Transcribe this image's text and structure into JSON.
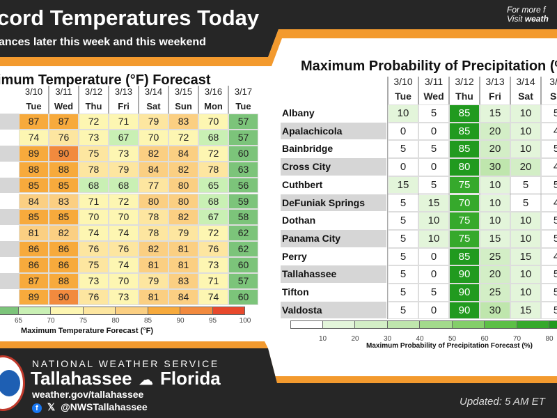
{
  "header": {
    "title": "cord Temperatures Today",
    "subtitle": "ances later this week and this weekend",
    "more_line1": "For more f",
    "more_line2_prefix": "Visit ",
    "more_line2_bold": "weath"
  },
  "temp_table": {
    "title": "imum Temperature (°F) Forecast",
    "dates": [
      "3/10",
      "3/11",
      "3/12",
      "3/13",
      "3/14",
      "3/15",
      "3/16",
      "3/17"
    ],
    "days": [
      "Tue",
      "Wed",
      "Thu",
      "Fri",
      "Sat",
      "Sun",
      "Mon",
      "Tue"
    ],
    "rows": [
      [
        87,
        87,
        72,
        71,
        79,
        83,
        70,
        57
      ],
      [
        74,
        76,
        73,
        67,
        70,
        72,
        68,
        57
      ],
      [
        89,
        90,
        75,
        73,
        82,
        84,
        72,
        60
      ],
      [
        88,
        88,
        78,
        79,
        84,
        82,
        78,
        63
      ],
      [
        85,
        85,
        68,
        68,
        77,
        80,
        65,
        56
      ],
      [
        84,
        83,
        71,
        72,
        80,
        80,
        68,
        59
      ],
      [
        85,
        85,
        70,
        70,
        78,
        82,
        67,
        58
      ],
      [
        81,
        82,
        74,
        74,
        78,
        79,
        72,
        62
      ],
      [
        86,
        86,
        76,
        76,
        82,
        81,
        76,
        62
      ],
      [
        86,
        86,
        75,
        74,
        81,
        81,
        73,
        60
      ],
      [
        87,
        88,
        73,
        70,
        79,
        83,
        71,
        57
      ],
      [
        89,
        90,
        76,
        73,
        81,
        84,
        74,
        60
      ]
    ],
    "legend": {
      "label": "Maximum Temperature Forecast (°F)",
      "ticks": [
        "65",
        "70",
        "75",
        "80",
        "85",
        "90",
        "95",
        "100"
      ],
      "colors": [
        "#7cc47a",
        "#c9f0b4",
        "#fdf6b2",
        "#fde6a0",
        "#fbcf82",
        "#f7aa3c",
        "#f28a3e",
        "#e8492c"
      ]
    }
  },
  "precip_table": {
    "title": "Maximum Probability of Precipitation (%)",
    "dates": [
      "3/10",
      "3/11",
      "3/12",
      "3/13",
      "3/14",
      "3/1"
    ],
    "days": [
      "Tue",
      "Wed",
      "Thu",
      "Fri",
      "Sat",
      "Su"
    ],
    "rows": [
      {
        "name": "Albany",
        "values": [
          "10",
          "5",
          "85",
          "15",
          "10",
          "5"
        ]
      },
      {
        "name": "Apalachicola",
        "values": [
          "0",
          "0",
          "85",
          "20",
          "10",
          "4"
        ]
      },
      {
        "name": "Bainbridge",
        "values": [
          "5",
          "5",
          "85",
          "20",
          "10",
          "5"
        ]
      },
      {
        "name": "Cross City",
        "values": [
          "0",
          "0",
          "80",
          "30",
          "20",
          "4"
        ]
      },
      {
        "name": "Cuthbert",
        "values": [
          "15",
          "5",
          "75",
          "10",
          "5",
          "5"
        ]
      },
      {
        "name": "DeFuniak Springs",
        "values": [
          "5",
          "15",
          "70",
          "10",
          "5",
          "4"
        ]
      },
      {
        "name": "Dothan",
        "values": [
          "5",
          "10",
          "75",
          "10",
          "10",
          "5"
        ]
      },
      {
        "name": "Panama City",
        "values": [
          "5",
          "10",
          "75",
          "15",
          "10",
          "5"
        ]
      },
      {
        "name": "Perry",
        "values": [
          "5",
          "0",
          "85",
          "25",
          "15",
          "4"
        ]
      },
      {
        "name": "Tallahassee",
        "values": [
          "5",
          "0",
          "90",
          "20",
          "10",
          "5"
        ]
      },
      {
        "name": "Tifton",
        "values": [
          "5",
          "5",
          "90",
          "25",
          "10",
          "5"
        ]
      },
      {
        "name": "Valdosta",
        "values": [
          "5",
          "0",
          "90",
          "30",
          "15",
          "5"
        ]
      }
    ],
    "legend": {
      "label": "Maximum Probability of Precipitation Forecast (%)",
      "ticks": [
        "10",
        "20",
        "30",
        "40",
        "50",
        "60",
        "70",
        "80"
      ],
      "colors": [
        "#ffffff",
        "#e3f5da",
        "#d3eec6",
        "#bfe6ad",
        "#a3da8c",
        "#84ce6a",
        "#5cbf46",
        "#36a92c",
        "#219a1f"
      ]
    }
  },
  "footer": {
    "agency": "NATIONAL WEATHER SERVICE",
    "office_left": "Tallahassee",
    "office_right": "Florida",
    "website": "weather.gov/tallahassee",
    "social": "@NWSTallahassee",
    "updated": "Updated: 5 AM ET"
  },
  "colors": {
    "dark": "#262626",
    "orange": "#f39a2e"
  }
}
